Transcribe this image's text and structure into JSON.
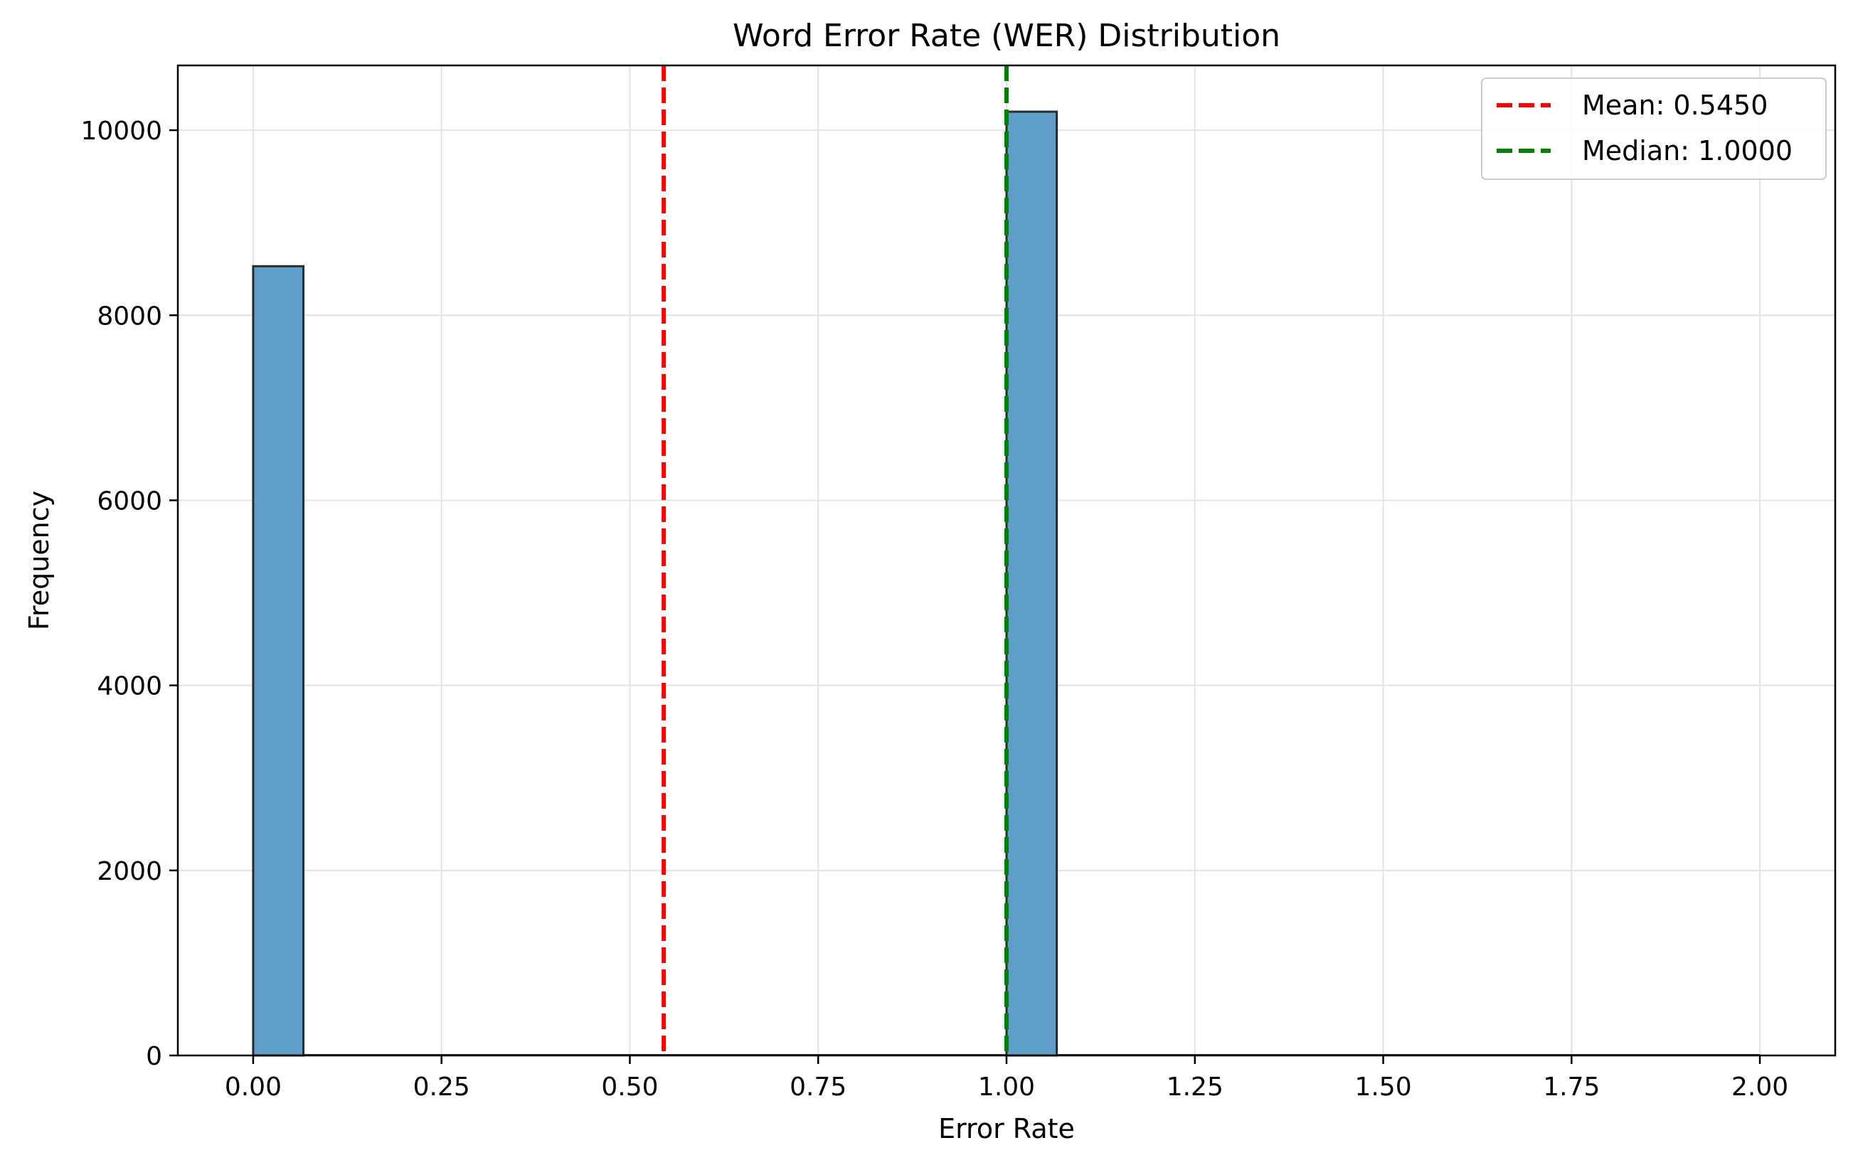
{
  "chart_data": {
    "type": "bar",
    "title": "Word Error Rate (WER) Distribution",
    "xlabel": "Error Rate",
    "ylabel": "Frequency",
    "xlim": [
      -0.1,
      2.1
    ],
    "ylim": [
      0,
      10700
    ],
    "xticks": [
      0.0,
      0.25,
      0.5,
      0.75,
      1.0,
      1.25,
      1.5,
      1.75,
      2.0
    ],
    "xtick_labels": [
      "0.00",
      "0.25",
      "0.50",
      "0.75",
      "1.00",
      "1.25",
      "1.50",
      "1.75",
      "2.00"
    ],
    "yticks": [
      0,
      2000,
      4000,
      6000,
      8000,
      10000
    ],
    "ytick_labels": [
      "0",
      "2000",
      "4000",
      "6000",
      "8000",
      "10000"
    ],
    "grid": true,
    "legend_position": "top-right",
    "bar_color": "#5f9ec9",
    "bins": [
      {
        "x0": 0.0,
        "x1": 0.0667,
        "count": 8530
      },
      {
        "x0": 1.0,
        "x1": 1.0667,
        "count": 10200
      }
    ],
    "bin_range": [
      0.0,
      2.0
    ],
    "bin_count": 30,
    "reference_lines": [
      {
        "name": "Mean: 0.5450",
        "value": 0.545,
        "color": "#ff0000"
      },
      {
        "name": "Median: 1.0000",
        "value": 1.0,
        "color": "#008000"
      }
    ]
  }
}
